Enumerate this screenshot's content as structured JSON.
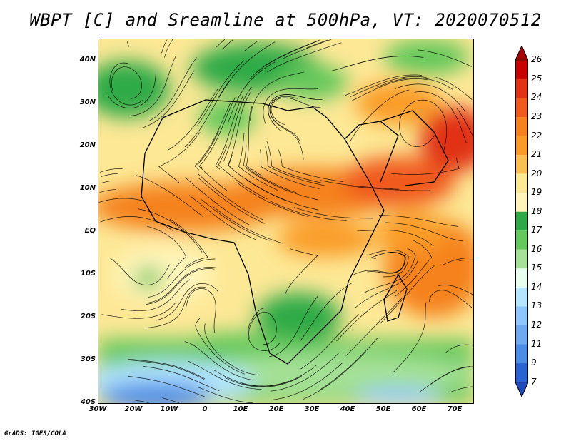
{
  "title": "WBPT [C] and Sreamline at 500hPa, VT: 2020070512",
  "credit": "GrADS: IGES/COLA",
  "map": {
    "lat_labels": [
      "40N",
      "30N",
      "20N",
      "10N",
      "EQ",
      "10S",
      "20S",
      "30S",
      "40S"
    ],
    "lon_labels": [
      "30W",
      "20W",
      "10W",
      "0",
      "10E",
      "20E",
      "30E",
      "40E",
      "50E",
      "60E",
      "70E"
    ],
    "lat_range": [
      -40,
      44
    ],
    "lon_range": [
      -30,
      75
    ],
    "field": "wet-bulb potential temperature",
    "overlay": "streamlines"
  },
  "colorbar": {
    "labels": [
      "26",
      "25",
      "24",
      "23",
      "22",
      "21",
      "20",
      "19",
      "18",
      "17",
      "16",
      "15",
      "14",
      "13",
      "12",
      "11",
      "9",
      "7"
    ],
    "colors": [
      "#a50000",
      "#c80000",
      "#e13214",
      "#f05a1e",
      "#f5821e",
      "#fa9b28",
      "#fbbe50",
      "#fde896",
      "#fff5bb",
      "#2daa46",
      "#64c85a",
      "#a5e196",
      "#e6fff0",
      "#b4e6ff",
      "#8cc8ff",
      "#6eaaf0",
      "#4b8ce6",
      "#2864d2",
      "#1e4bb9"
    ]
  }
}
